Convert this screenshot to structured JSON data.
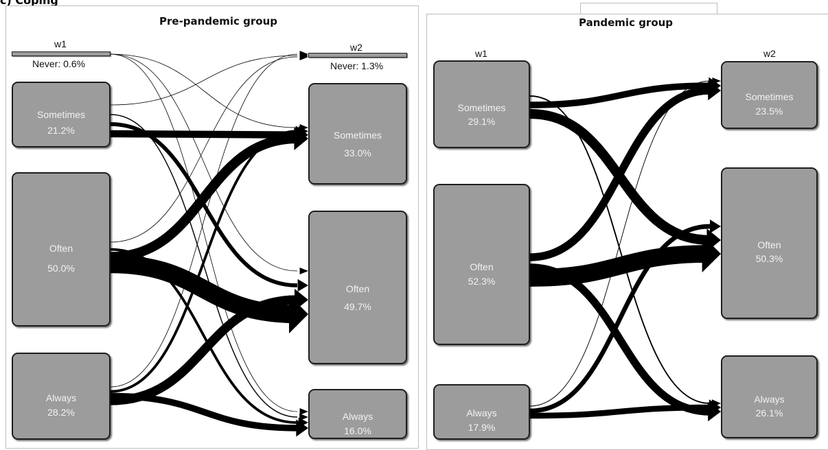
{
  "heading": "c) Coping",
  "panels": [
    {
      "title": "Pre-pandemic group",
      "w1": "w1",
      "w2": "w2",
      "left_nodes": [
        {
          "state": "Never",
          "pct": "0.6%"
        },
        {
          "state": "Sometimes",
          "pct": "21.2%"
        },
        {
          "state": "Often",
          "pct": "50.0%"
        },
        {
          "state": "Always",
          "pct": "28.2%"
        }
      ],
      "right_nodes": [
        {
          "state": "Never",
          "pct": "1.3%"
        },
        {
          "state": "Sometimes",
          "pct": "33.0%"
        },
        {
          "state": "Often",
          "pct": "49.7%"
        },
        {
          "state": "Always",
          "pct": "16.0%"
        }
      ],
      "flows": [
        {
          "from": "Never",
          "to": "Sometimes",
          "weight": 0.2
        },
        {
          "from": "Never",
          "to": "Often",
          "weight": 0.2
        },
        {
          "from": "Never",
          "to": "Always",
          "weight": 0.2
        },
        {
          "from": "Sometimes",
          "to": "Never",
          "weight": 0.4
        },
        {
          "from": "Sometimes",
          "to": "Sometimes",
          "weight": 11
        },
        {
          "from": "Sometimes",
          "to": "Often",
          "weight": 6
        },
        {
          "from": "Sometimes",
          "to": "Always",
          "weight": 1.5
        },
        {
          "from": "Often",
          "to": "Never",
          "weight": 0.4
        },
        {
          "from": "Often",
          "to": "Sometimes",
          "weight": 15
        },
        {
          "from": "Often",
          "to": "Often",
          "weight": 28
        },
        {
          "from": "Often",
          "to": "Always",
          "weight": 4
        },
        {
          "from": "Always",
          "to": "Never",
          "weight": 0.3
        },
        {
          "from": "Always",
          "to": "Sometimes",
          "weight": 4
        },
        {
          "from": "Always",
          "to": "Often",
          "weight": 14
        },
        {
          "from": "Always",
          "to": "Always",
          "weight": 10
        }
      ]
    },
    {
      "title": "Pandemic group",
      "w1": "w1",
      "w2": "w2",
      "left_nodes": [
        {
          "state": "Sometimes",
          "pct": "29.1%"
        },
        {
          "state": "Often",
          "pct": "52.3%"
        },
        {
          "state": "Always",
          "pct": "17.9%"
        }
      ],
      "right_nodes": [
        {
          "state": "Sometimes",
          "pct": "23.5%"
        },
        {
          "state": "Often",
          "pct": "50.3%"
        },
        {
          "state": "Always",
          "pct": "26.1%"
        }
      ],
      "flows": [
        {
          "from": "Sometimes",
          "to": "Sometimes",
          "weight": 10
        },
        {
          "from": "Sometimes",
          "to": "Often",
          "weight": 15
        },
        {
          "from": "Sometimes",
          "to": "Always",
          "weight": 2
        },
        {
          "from": "Often",
          "to": "Sometimes",
          "weight": 12
        },
        {
          "from": "Often",
          "to": "Often",
          "weight": 27
        },
        {
          "from": "Often",
          "to": "Always",
          "weight": 12
        },
        {
          "from": "Always",
          "to": "Sometimes",
          "weight": 1
        },
        {
          "from": "Always",
          "to": "Often",
          "weight": 7
        },
        {
          "from": "Always",
          "to": "Always",
          "weight": 9
        }
      ]
    }
  ]
}
